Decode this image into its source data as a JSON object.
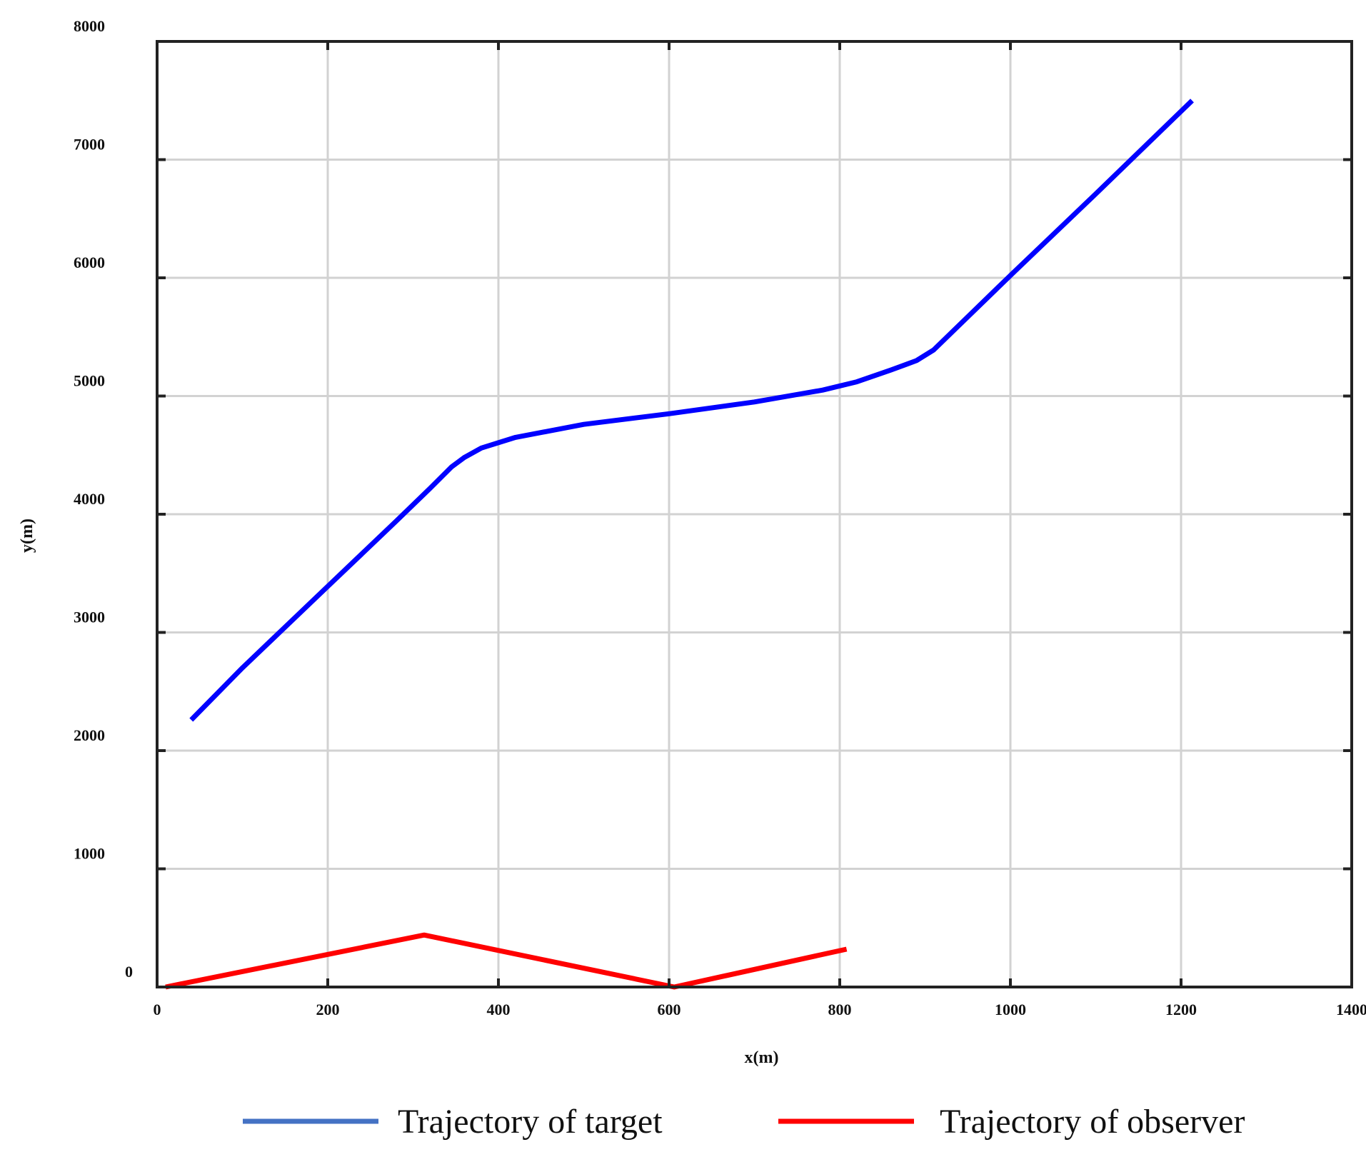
{
  "chart_data": {
    "type": "line",
    "title": "",
    "xlabel": "x(m)",
    "ylabel": "y(m)",
    "xlim": [
      0,
      1400
    ],
    "ylim": [
      0,
      8000
    ],
    "xticks": [
      0,
      200,
      400,
      600,
      800,
      1000,
      1200,
      1400
    ],
    "yticks": [
      0,
      1000,
      2000,
      3000,
      4000,
      5000,
      6000,
      7000,
      8000
    ],
    "xtick_labels": [
      "0",
      "200",
      "400",
      "600",
      "800",
      "1000",
      "1200",
      "1400"
    ],
    "ytick_labels": [
      "0",
      "1000",
      "2000",
      "3000",
      "4000",
      "5000",
      "6000",
      "7000",
      "8000"
    ],
    "grid": true,
    "legend_position": "bottom",
    "series": [
      {
        "name": "Trajectory of target",
        "color": "#0000ff",
        "legend_color": "#4472c4",
        "x": [
          40,
          100,
          200,
          280,
          320,
          345,
          360,
          380,
          420,
          500,
          600,
          700,
          780,
          820,
          860,
          890,
          910,
          950,
          1000,
          1100,
          1213
        ],
        "y": [
          2260,
          2700,
          3390,
          3940,
          4220,
          4400,
          4480,
          4560,
          4650,
          4760,
          4850,
          4950,
          5050,
          5120,
          5220,
          5300,
          5390,
          5670,
          6020,
          6710,
          7500
        ]
      },
      {
        "name": "Trajectory of observer",
        "color": "#ff0000",
        "legend_color": "#ff0000",
        "x": [
          10,
          313,
          606,
          808
        ],
        "y": [
          0,
          440,
          0,
          320
        ]
      }
    ]
  }
}
